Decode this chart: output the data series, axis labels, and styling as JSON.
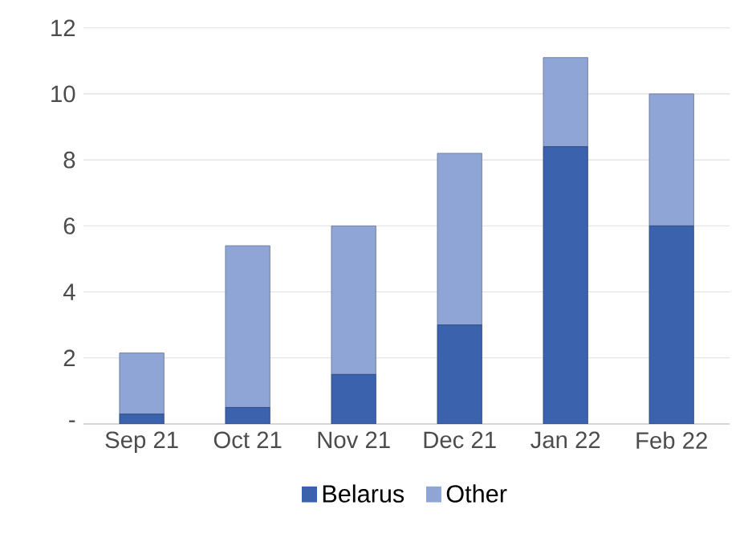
{
  "chart_data": {
    "type": "bar",
    "stacked": true,
    "categories": [
      "Sep 21",
      "Oct 21",
      "Nov 21",
      "Dec 21",
      "Jan 22",
      "Feb 22"
    ],
    "series": [
      {
        "name": "Belarus",
        "color": "#3a62ad",
        "values": [
          0.3,
          0.5,
          1.5,
          3.0,
          8.4,
          6.0
        ]
      },
      {
        "name": "Other",
        "color": "#8ea5d6",
        "values": [
          1.85,
          4.9,
          4.5,
          5.2,
          2.7,
          4.0
        ]
      }
    ],
    "ylim": [
      0,
      12
    ],
    "yticks": [
      {
        "value": 0,
        "label": "-"
      },
      2,
      4,
      6,
      8,
      10,
      12
    ],
    "grid": "y",
    "legend": "bottom"
  }
}
